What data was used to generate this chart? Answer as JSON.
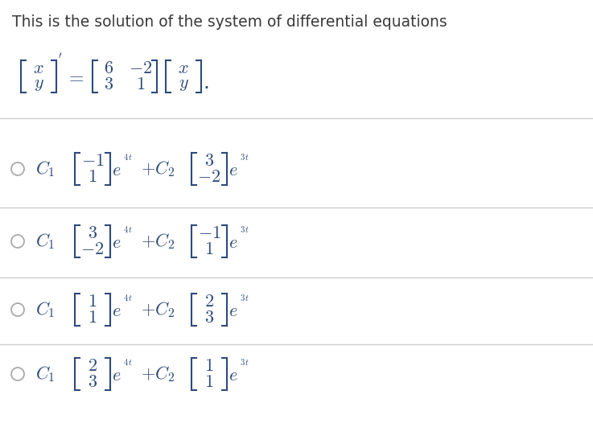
{
  "title": "This is the solution of the system of differential equations",
  "title_fontsize": 13.5,
  "background_color": "#ffffff",
  "math_color": "#2d4a7a",
  "title_color": "#3a3a3a",
  "divider_color": "#cccccc",
  "radio_color": "#aaaaaa",
  "options": [
    {
      "vec1_top": "-1",
      "vec1_bot": "1",
      "exp1": "4t",
      "vec2_top": "3",
      "vec2_bot": "-2",
      "exp2": "3t"
    },
    {
      "vec1_top": "3",
      "vec1_bot": "-2",
      "exp1": "4t",
      "vec2_top": "-1",
      "vec2_bot": "1",
      "exp2": "3t"
    },
    {
      "vec1_top": "1",
      "vec1_bot": "1",
      "exp1": "4t",
      "vec2_top": "2",
      "vec2_bot": "3",
      "exp2": "3t"
    },
    {
      "vec1_top": "2",
      "vec1_bot": "3",
      "exp1": "4t",
      "vec2_top": "1",
      "vec2_bot": "1",
      "exp2": "3t"
    }
  ],
  "header_matrix_vals": [
    "6",
    "-2",
    "3",
    "1"
  ],
  "header_vec1": [
    "x",
    "y"
  ],
  "header_vec2": [
    "x",
    "y"
  ],
  "figsize": [
    7.37,
    5.52
  ],
  "dpi": 100
}
